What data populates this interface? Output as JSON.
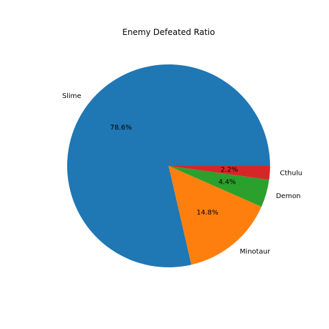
{
  "chart_data": {
    "type": "pie",
    "title": "Enemy Defeated Ratio",
    "slices": [
      {
        "label": "Slime",
        "value": 78.6,
        "pct_label": "78.6%",
        "color": "#1f77b4"
      },
      {
        "label": "Minotaur",
        "value": 14.8,
        "pct_label": "14.8%",
        "color": "#ff7f0e"
      },
      {
        "label": "Demon",
        "value": 4.4,
        "pct_label": "4.4%",
        "color": "#2ca02c"
      },
      {
        "label": "Cthulu",
        "value": 2.2,
        "pct_label": "2.2%",
        "color": "#d62728"
      }
    ],
    "start_angle_deg": 0,
    "direction": "counterclockwise"
  }
}
